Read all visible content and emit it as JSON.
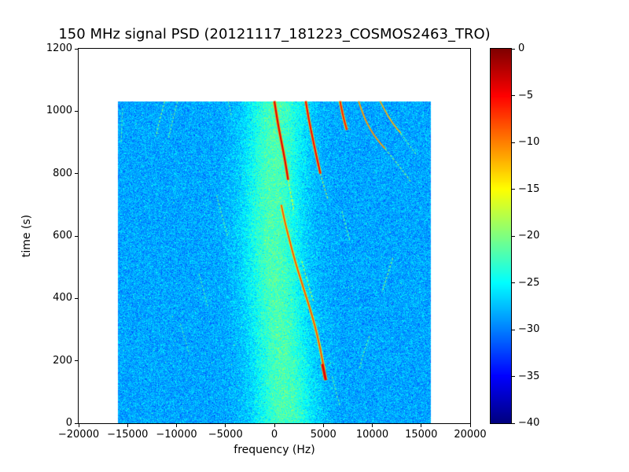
{
  "chart_data": {
    "type": "heatmap",
    "title": "150 MHz signal PSD (20121117_181223_COSMOS2463_TRO)",
    "xlabel": "frequency (Hz)",
    "ylabel": "time (s)",
    "xlim": [
      -20000,
      20000
    ],
    "ylim": [
      0,
      1200
    ],
    "xticks": [
      -20000,
      -15000,
      -10000,
      -5000,
      0,
      5000,
      10000,
      15000,
      20000
    ],
    "xtick_labels": [
      "−20000",
      "−15000",
      "−10000",
      "−5000",
      "0",
      "5000",
      "10000",
      "15000",
      "20000"
    ],
    "yticks": [
      0,
      200,
      400,
      600,
      800,
      1000,
      1200
    ],
    "ytick_labels": [
      "0",
      "200",
      "400",
      "600",
      "800",
      "1000",
      "1200"
    ],
    "colormap": "jet",
    "grid": false,
    "colorbar": {
      "db_min": -40,
      "db_max": 0,
      "ticks": [
        0,
        -5,
        -10,
        -15,
        -20,
        -25,
        -30,
        -35,
        -40
      ],
      "tick_labels": [
        "0",
        "−5",
        "−10",
        "−15",
        "−20",
        "−25",
        "−30",
        "−35",
        "−40"
      ]
    },
    "data_extent": {
      "freq_min": -16000,
      "freq_max": 16000,
      "time_min": 0,
      "time_max": 1032
    },
    "background_db": -28.5,
    "noise_sigma_db": 1.5,
    "band": {
      "half_width_hz": 4300,
      "peak_db": 6.5,
      "center_points": [
        [
          0,
          1000
        ],
        [
          150,
          900
        ],
        [
          300,
          500
        ],
        [
          450,
          100
        ],
        [
          600,
          -200
        ],
        [
          750,
          -100
        ],
        [
          900,
          100
        ],
        [
          1032,
          200
        ]
      ]
    },
    "traces": [
      {
        "db": -4,
        "w": 2.2,
        "pts": [
          [
            1032,
            0
          ],
          [
            970,
            300
          ],
          [
            905,
            700
          ],
          [
            840,
            1100
          ],
          [
            780,
            1400
          ]
        ]
      },
      {
        "db": -5,
        "w": 2.0,
        "pts": [
          [
            1032,
            3200
          ],
          [
            975,
            3500
          ],
          [
            915,
            3900
          ],
          [
            855,
            4300
          ],
          [
            800,
            4700
          ]
        ]
      },
      {
        "db": -6,
        "w": 2.0,
        "pts": [
          [
            1032,
            6700
          ],
          [
            985,
            7000
          ],
          [
            940,
            7400
          ]
        ]
      },
      {
        "db": -11,
        "w": 1.8,
        "pts": [
          [
            1032,
            8600
          ],
          [
            985,
            9100
          ],
          [
            940,
            9800
          ],
          [
            905,
            10600
          ],
          [
            880,
            11300
          ]
        ]
      },
      {
        "db": -12,
        "w": 1.6,
        "pts": [
          [
            1032,
            10800
          ],
          [
            995,
            11400
          ],
          [
            960,
            12100
          ],
          [
            930,
            12900
          ]
        ]
      },
      {
        "db": -20,
        "w": 1.4,
        "pts": [
          [
            880,
            11300
          ],
          [
            845,
            12200
          ],
          [
            810,
            13100
          ],
          [
            775,
            13900
          ]
        ]
      },
      {
        "db": -21,
        "w": 1.2,
        "pts": [
          [
            930,
            12900
          ],
          [
            895,
            13700
          ],
          [
            860,
            14500
          ]
        ]
      },
      {
        "db": -16,
        "w": 1.5,
        "pts": [
          [
            780,
            1400
          ],
          [
            730,
            1700
          ],
          [
            680,
            2000
          ]
        ]
      },
      {
        "db": -8,
        "w": 1.8,
        "pts": [
          [
            700,
            700
          ],
          [
            640,
            1100
          ],
          [
            580,
            1600
          ],
          [
            520,
            2100
          ],
          [
            460,
            2700
          ],
          [
            400,
            3300
          ],
          [
            340,
            3900
          ],
          [
            280,
            4400
          ],
          [
            220,
            4800
          ],
          [
            170,
            5100
          ]
        ]
      },
      {
        "db": -4,
        "w": 3.0,
        "pts": [
          [
            190,
            4900
          ],
          [
            160,
            5100
          ],
          [
            138,
            5250
          ]
        ]
      },
      {
        "db": -20,
        "w": 1.4,
        "pts": [
          [
            1032,
            -11200
          ],
          [
            975,
            -11700
          ],
          [
            920,
            -12100
          ]
        ]
      },
      {
        "db": -21,
        "w": 1.3,
        "pts": [
          [
            1032,
            -9900
          ],
          [
            970,
            -10400
          ],
          [
            915,
            -10800
          ]
        ]
      },
      {
        "db": -22,
        "w": 1.2,
        "pts": [
          [
            1010,
            -15500
          ],
          [
            950,
            -15600
          ],
          [
            900,
            -15650
          ]
        ]
      },
      {
        "db": -21,
        "w": 1.3,
        "pts": [
          [
            730,
            -5900
          ],
          [
            660,
            -5300
          ],
          [
            600,
            -4800
          ]
        ]
      },
      {
        "db": -22,
        "w": 1.2,
        "pts": [
          [
            480,
            -7700
          ],
          [
            420,
            -7200
          ],
          [
            370,
            -6800
          ]
        ]
      },
      {
        "db": -22,
        "w": 1.1,
        "pts": [
          [
            320,
            -9600
          ],
          [
            265,
            -9100
          ],
          [
            220,
            -8700
          ]
        ]
      },
      {
        "db": -21,
        "w": 1.3,
        "pts": [
          [
            680,
            6900
          ],
          [
            630,
            7300
          ],
          [
            585,
            7700
          ]
        ]
      },
      {
        "db": -20,
        "w": 1.4,
        "pts": [
          [
            530,
            12100
          ],
          [
            470,
            11500
          ],
          [
            420,
            11000
          ]
        ]
      },
      {
        "db": -21,
        "w": 1.3,
        "pts": [
          [
            280,
            9700
          ],
          [
            225,
            9100
          ],
          [
            175,
            8700
          ]
        ]
      },
      {
        "db": -21,
        "w": 1.2,
        "pts": [
          [
            150,
            5900
          ],
          [
            100,
            6300
          ],
          [
            55,
            6700
          ]
        ]
      },
      {
        "db": -21,
        "w": 1.2,
        "pts": [
          [
            1032,
            -4700
          ],
          [
            985,
            -4400
          ]
        ]
      },
      {
        "db": -17,
        "w": 1.3,
        "pts": [
          [
            520,
            2800
          ],
          [
            450,
            3400
          ],
          [
            390,
            4000
          ]
        ]
      },
      {
        "db": -18,
        "w": 1.3,
        "pts": [
          [
            800,
            4700
          ],
          [
            755,
            5100
          ],
          [
            715,
            5500
          ]
        ]
      }
    ]
  }
}
